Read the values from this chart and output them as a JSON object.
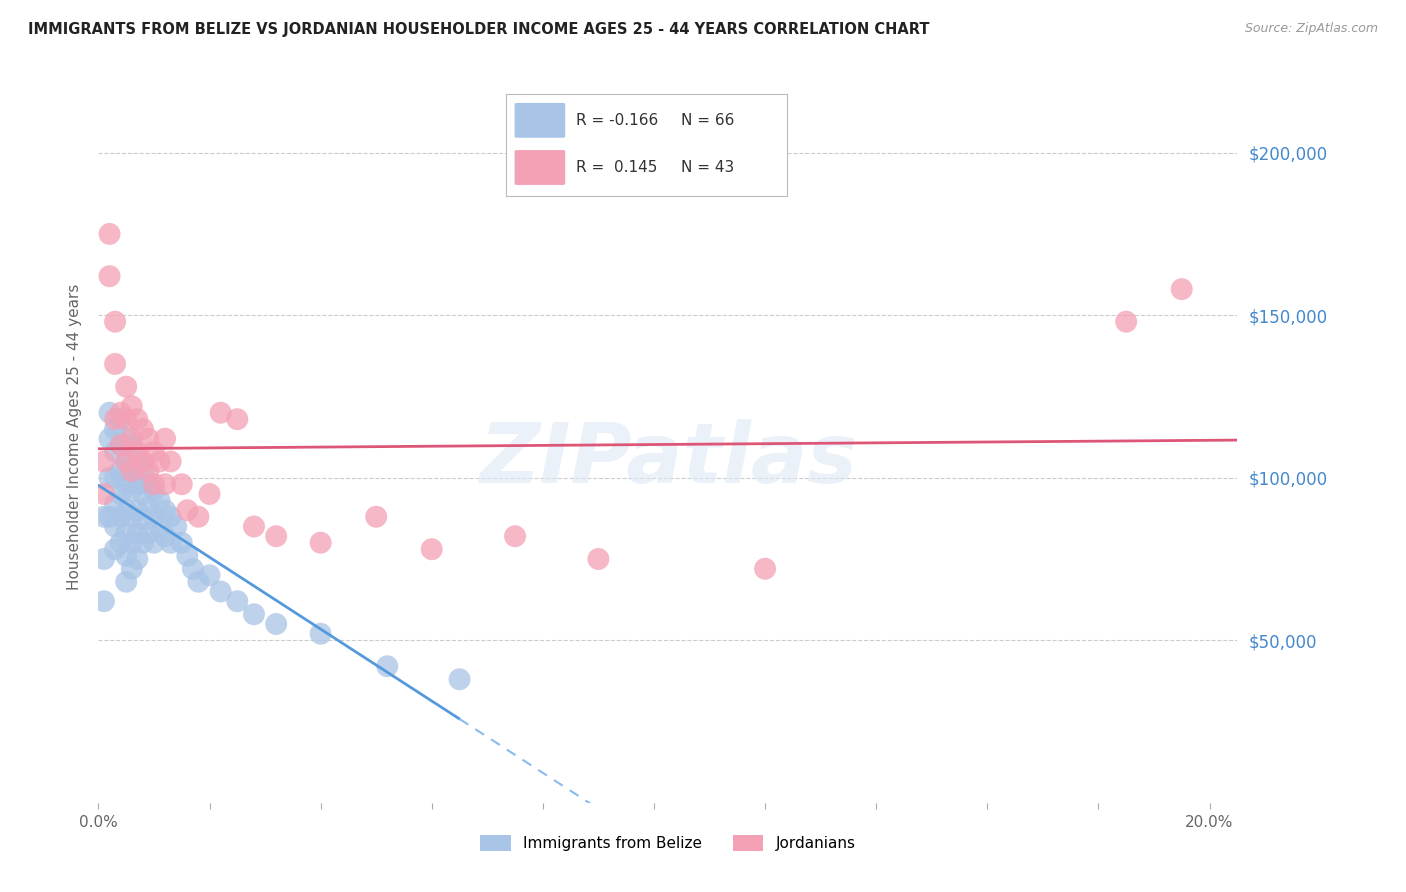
{
  "title": "IMMIGRANTS FROM BELIZE VS JORDANIAN HOUSEHOLDER INCOME AGES 25 - 44 YEARS CORRELATION CHART",
  "source": "Source: ZipAtlas.com",
  "ylabel": "Householder Income Ages 25 - 44 years",
  "ytick_labels": [
    "$50,000",
    "$100,000",
    "$150,000",
    "$200,000"
  ],
  "ytick_values": [
    50000,
    100000,
    150000,
    200000
  ],
  "ylim": [
    0,
    225000
  ],
  "xlim": [
    0.0,
    0.205
  ],
  "belize_color": "#a8c4e6",
  "jordan_color": "#f4a0b5",
  "belize_line_color": "#5599dd",
  "belize_line_dash_color": "#88bbee",
  "jordan_line_color": "#dd5577",
  "belize_R": -0.166,
  "belize_N": 66,
  "jordan_R": 0.145,
  "jordan_N": 43,
  "legend_label_belize": "Immigrants from Belize",
  "legend_label_jordan": "Jordanians",
  "watermark": "ZIPatlas",
  "belize_x": [
    0.001,
    0.001,
    0.001,
    0.002,
    0.002,
    0.002,
    0.002,
    0.003,
    0.003,
    0.003,
    0.003,
    0.003,
    0.003,
    0.004,
    0.004,
    0.004,
    0.004,
    0.004,
    0.004,
    0.005,
    0.005,
    0.005,
    0.005,
    0.005,
    0.005,
    0.005,
    0.006,
    0.006,
    0.006,
    0.006,
    0.006,
    0.006,
    0.007,
    0.007,
    0.007,
    0.007,
    0.007,
    0.008,
    0.008,
    0.008,
    0.008,
    0.009,
    0.009,
    0.009,
    0.01,
    0.01,
    0.01,
    0.011,
    0.011,
    0.012,
    0.012,
    0.013,
    0.013,
    0.014,
    0.015,
    0.016,
    0.017,
    0.018,
    0.02,
    0.022,
    0.025,
    0.028,
    0.032,
    0.04,
    0.052,
    0.065
  ],
  "belize_y": [
    88000,
    75000,
    62000,
    120000,
    112000,
    100000,
    88000,
    115000,
    108000,
    100000,
    92000,
    85000,
    78000,
    118000,
    110000,
    102000,
    95000,
    88000,
    80000,
    112000,
    105000,
    98000,
    90000,
    83000,
    76000,
    68000,
    110000,
    103000,
    96000,
    88000,
    80000,
    72000,
    105000,
    98000,
    90000,
    83000,
    75000,
    102000,
    95000,
    87000,
    80000,
    98000,
    91000,
    83000,
    96000,
    88000,
    80000,
    93000,
    85000,
    90000,
    82000,
    88000,
    80000,
    85000,
    80000,
    76000,
    72000,
    68000,
    70000,
    65000,
    62000,
    58000,
    55000,
    52000,
    42000,
    38000
  ],
  "jordan_x": [
    0.001,
    0.001,
    0.002,
    0.002,
    0.003,
    0.003,
    0.003,
    0.004,
    0.004,
    0.005,
    0.005,
    0.005,
    0.006,
    0.006,
    0.006,
    0.007,
    0.007,
    0.008,
    0.008,
    0.009,
    0.009,
    0.01,
    0.01,
    0.011,
    0.012,
    0.012,
    0.013,
    0.015,
    0.016,
    0.018,
    0.02,
    0.022,
    0.025,
    0.028,
    0.032,
    0.04,
    0.05,
    0.06,
    0.075,
    0.09,
    0.12,
    0.185,
    0.195
  ],
  "jordan_y": [
    105000,
    95000,
    175000,
    162000,
    148000,
    135000,
    118000,
    120000,
    110000,
    128000,
    118000,
    105000,
    122000,
    112000,
    102000,
    118000,
    108000,
    115000,
    105000,
    112000,
    102000,
    108000,
    98000,
    105000,
    112000,
    98000,
    105000,
    98000,
    90000,
    88000,
    95000,
    120000,
    118000,
    85000,
    82000,
    80000,
    88000,
    78000,
    82000,
    75000,
    72000,
    148000,
    158000
  ]
}
